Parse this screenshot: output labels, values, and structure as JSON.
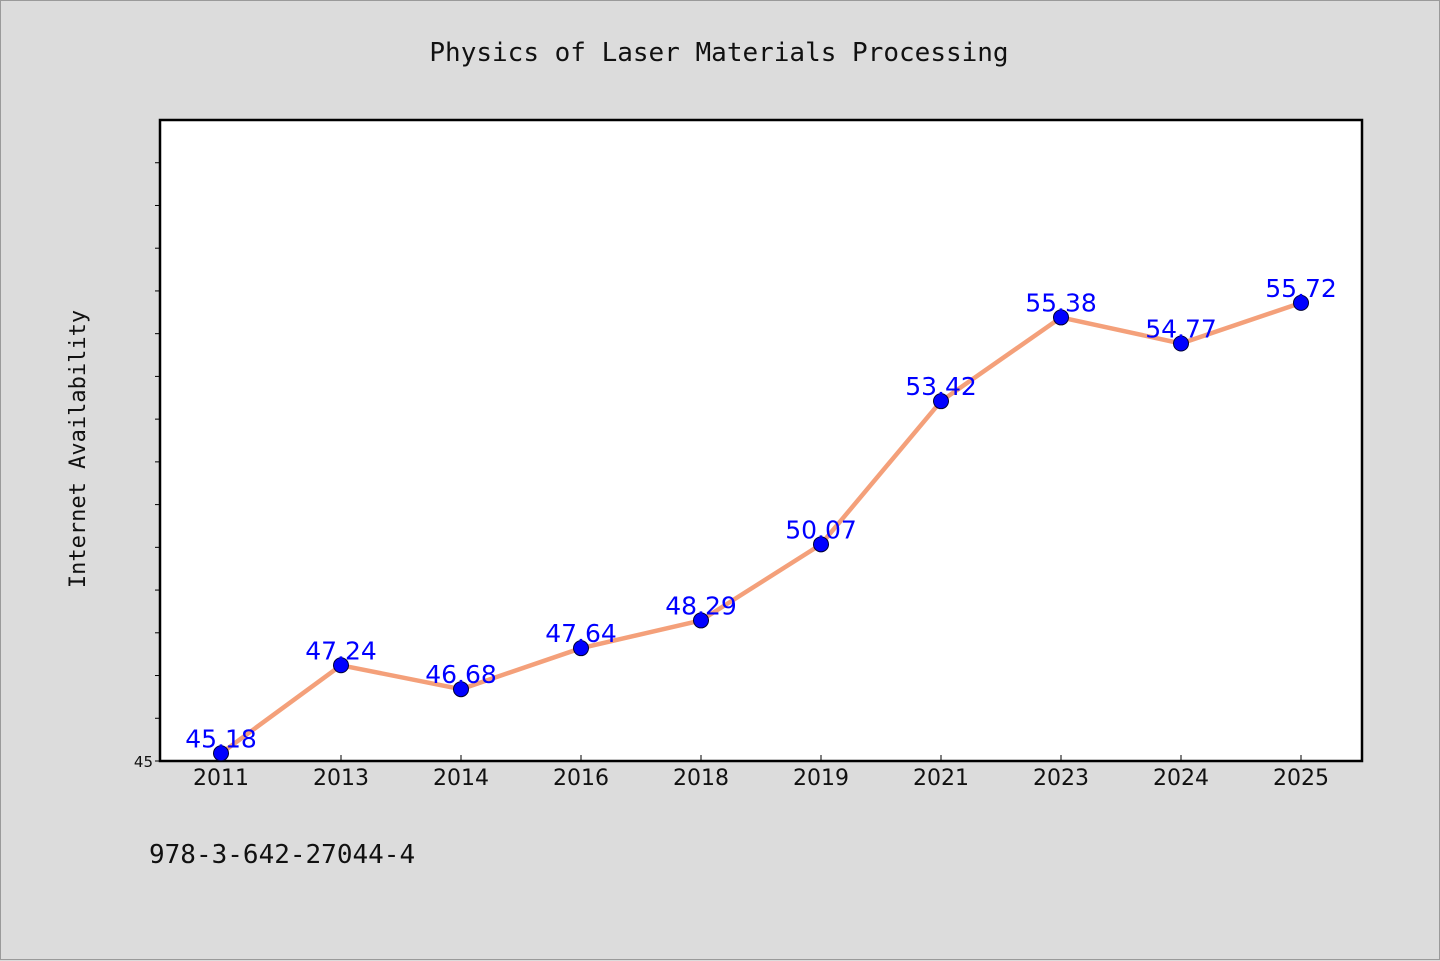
{
  "chart_data": {
    "type": "line",
    "title": "Physics of Laser Materials Processing",
    "ylabel": "Internet Availability",
    "xlabel": "",
    "categories": [
      "2011",
      "2013",
      "2014",
      "2016",
      "2018",
      "2019",
      "2021",
      "2023",
      "2024",
      "2025"
    ],
    "series": [
      {
        "values": [
          45.18,
          47.24,
          46.68,
          47.64,
          48.29,
          50.07,
          53.42,
          55.38,
          54.77,
          55.72
        ]
      }
    ],
    "data_labels": [
      "45.18",
      "47.24",
      "46.68",
      "47.64",
      "48.29",
      "50.07",
      "53.42",
      "55.38",
      "54.77",
      "55.72"
    ],
    "y_tick_labels": [
      "45"
    ],
    "ylim": [
      45,
      60
    ],
    "y_minor_step": 1,
    "grid": false,
    "legend": "none",
    "colors": {
      "line": "#f4a07a",
      "marker": "#0000ff",
      "marker_edge": "#000033",
      "label": "#0000ff",
      "plot_bg": "#ffffff",
      "figure_bg": "#dcdcdc"
    }
  },
  "footer": {
    "isbn": "978-3-642-27044-4"
  }
}
